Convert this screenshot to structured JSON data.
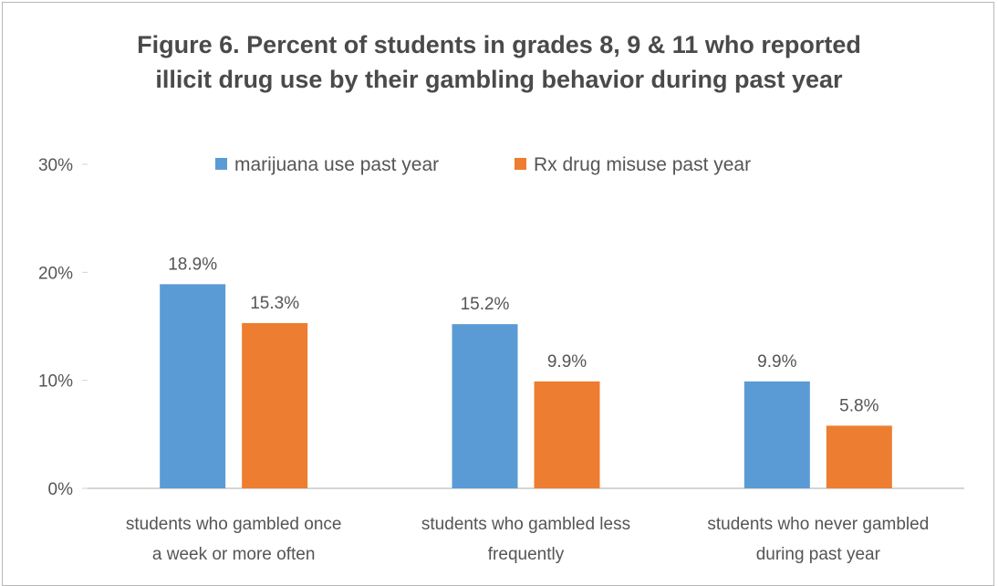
{
  "chart_data": {
    "type": "bar",
    "title": [
      "Figure 6. Percent of students in grades 8, 9 & 11 who reported",
      "illicit drug use by their gambling behavior during past year"
    ],
    "categories": [
      [
        "students who gambled once",
        "a week or more often"
      ],
      [
        "students who gambled less",
        "frequently"
      ],
      [
        "students who never gambled",
        "during past year"
      ]
    ],
    "series": [
      {
        "name": "marijuana use past year",
        "color": "#5b9bd5",
        "values": [
          18.9,
          15.2,
          9.9
        ],
        "labels": [
          "18.9%",
          "15.2%",
          "9.9%"
        ]
      },
      {
        "name": "Rx drug misuse past year",
        "color": "#ed7d31",
        "values": [
          15.3,
          9.9,
          5.8
        ],
        "labels": [
          "15.3%",
          "9.9%",
          "5.8%"
        ]
      }
    ],
    "ylim": [
      0,
      30
    ],
    "yticks": [
      0,
      10,
      20,
      30
    ],
    "ytick_labels": [
      "0%",
      "10%",
      "20%",
      "30%"
    ],
    "legend_position": "top",
    "grid": false,
    "xlabel": "",
    "ylabel": ""
  }
}
